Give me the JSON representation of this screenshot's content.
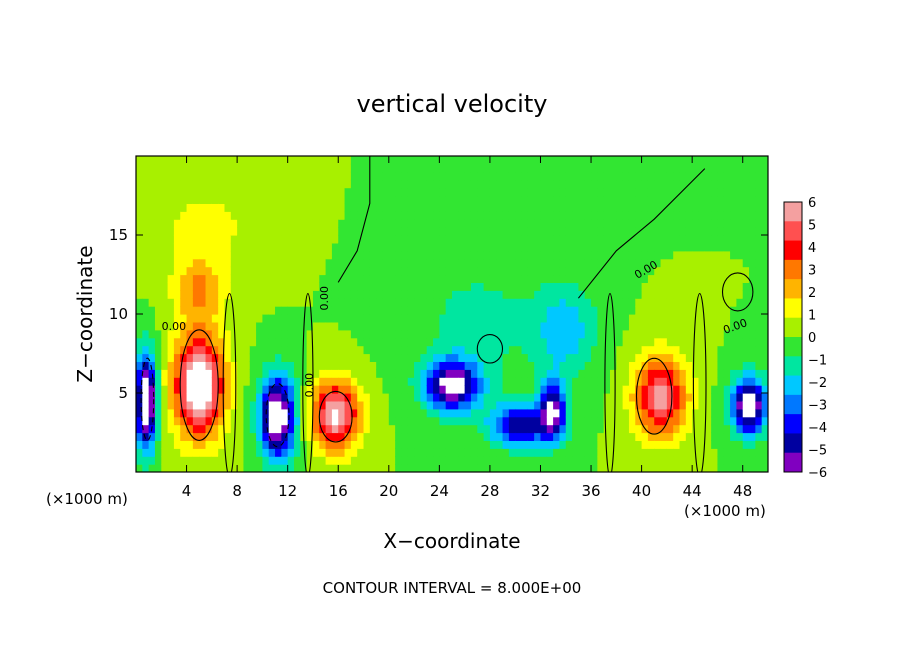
{
  "chart_data": {
    "type": "heatmap",
    "title": "vertical velocity",
    "xlabel": "X−coordinate",
    "ylabel": "Z−coordinate",
    "x_unit_left": "(×1000 m)",
    "x_unit_right": "(×1000 m)",
    "footer": "CONTOUR INTERVAL = 8.000E+00",
    "xlim": [
      0,
      50
    ],
    "ylim": [
      0,
      20
    ],
    "x_ticks": [
      4,
      8,
      12,
      16,
      20,
      24,
      28,
      32,
      36,
      40,
      44,
      48
    ],
    "y_ticks": [
      5,
      10,
      15
    ],
    "contour_labels": [
      "0.00",
      "0.00",
      "0.00",
      "0.00",
      "0.00"
    ],
    "colorbar": {
      "ticks": [
        "6",
        "5",
        "4",
        "3",
        "2",
        "1",
        "0",
        "−1",
        "−2",
        "−3",
        "−4",
        "−5",
        "−6"
      ],
      "colors": [
        "#f4a0a0",
        "#ff5050",
        "#ff0000",
        "#ff7800",
        "#ffb400",
        "#ffff00",
        "#a8f000",
        "#32e632",
        "#00e6a0",
        "#00c8ff",
        "#0078ff",
        "#0000ff",
        "#0000a0",
        "#8000c0"
      ]
    },
    "features": [
      {
        "x": 5.0,
        "z": 5.5,
        "w": 0.75,
        "sx": 2.0,
        "sz": 3.2
      },
      {
        "x": 15.8,
        "z": 3.6,
        "w": 0.62,
        "sx": 1.9,
        "sz": 2.2
      },
      {
        "x": 41.5,
        "z": 4.8,
        "w": 0.55,
        "sx": 2.1,
        "sz": 2.6
      },
      {
        "x": 5.0,
        "z": 11.5,
        "w": 0.25,
        "sx": 2.0,
        "sz": 2.0
      },
      {
        "x": 5.5,
        "z": 15.5,
        "w": 0.12,
        "sx": 4.0,
        "sz": 3.0
      },
      {
        "x": 0.8,
        "z": 4.5,
        "w": -0.8,
        "sx": 0.8,
        "sz": 3.0
      },
      {
        "x": 11.2,
        "z": 3.5,
        "w": -0.75,
        "sx": 1.4,
        "sz": 2.6
      },
      {
        "x": 25.0,
        "z": 5.5,
        "w": -0.65,
        "sx": 2.2,
        "sz": 1.6
      },
      {
        "x": 30.5,
        "z": 3.0,
        "w": -0.5,
        "sx": 2.5,
        "sz": 1.4
      },
      {
        "x": 33.0,
        "z": 4.0,
        "w": -0.55,
        "sx": 1.0,
        "sz": 1.8
      },
      {
        "x": 48.5,
        "z": 4.2,
        "w": -0.7,
        "sx": 1.4,
        "sz": 1.8
      },
      {
        "x": 34.0,
        "z": 9.0,
        "w": -0.22,
        "sx": 2.5,
        "sz": 3.0
      },
      {
        "x": 27.0,
        "z": 9.5,
        "w": -0.12,
        "sx": 5.0,
        "sz": 4.0
      }
    ]
  }
}
